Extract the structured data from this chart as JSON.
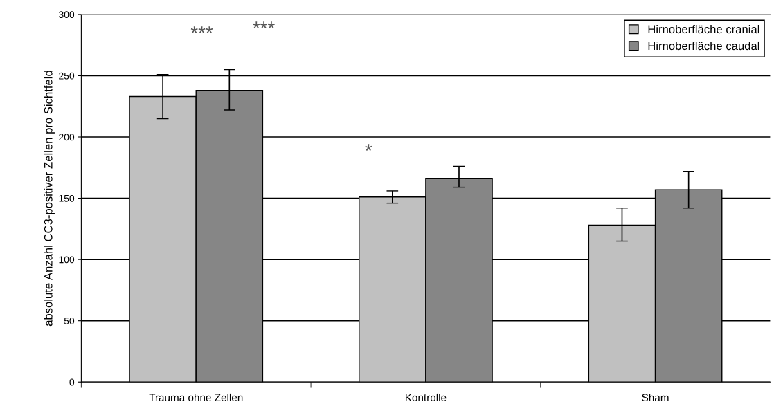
{
  "chart_data": {
    "type": "bar",
    "ylabel": "absolute Anzahl CC3-positiver Zellen pro Sichtfeld",
    "categories": [
      "Trauma ohne Zellen",
      "Kontrolle",
      "Sham"
    ],
    "series": [
      {
        "name": "Hirnoberfläche cranial",
        "color": "#c0c0c0",
        "values": [
          233,
          151,
          128
        ],
        "errors": [
          [
            215,
            251
          ],
          [
            146,
            156
          ],
          [
            115,
            142
          ]
        ]
      },
      {
        "name": "Hirnoberfläche caudal",
        "color": "#868686",
        "values": [
          238,
          166,
          157
        ],
        "errors": [
          [
            222,
            255
          ],
          [
            159,
            176
          ],
          [
            142,
            172
          ]
        ]
      }
    ],
    "annotations": [
      "***",
      "***",
      "*"
    ],
    "ylim": [
      0,
      300
    ],
    "yticks": [
      0,
      50,
      100,
      150,
      200,
      250,
      300
    ],
    "grid": "y",
    "legend": "top right"
  }
}
